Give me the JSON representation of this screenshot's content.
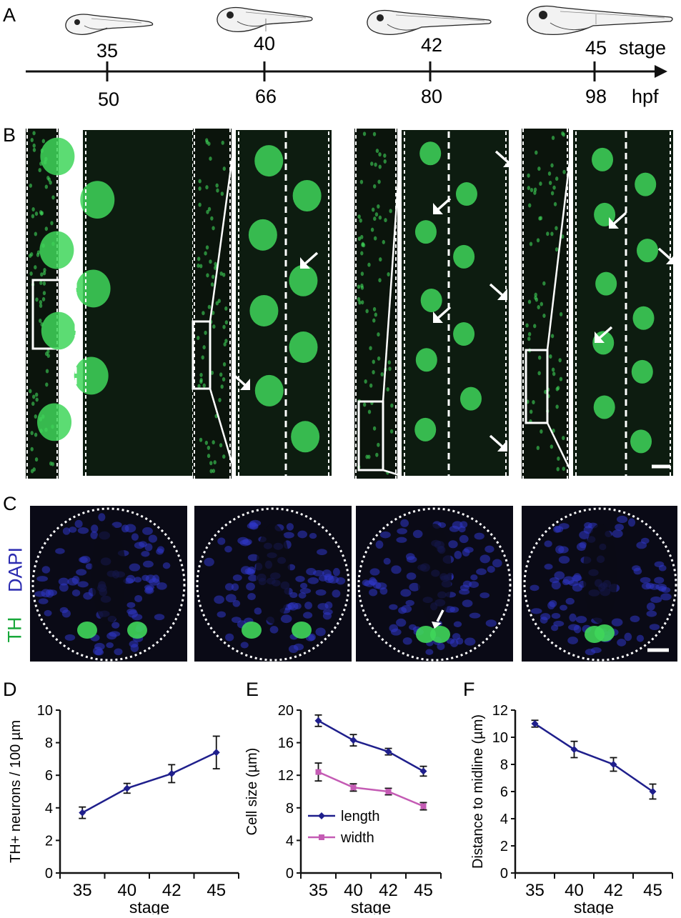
{
  "panels": {
    "A": "A",
    "B": "B",
    "C": "C",
    "D": "D",
    "E": "E",
    "F": "F"
  },
  "timeline": {
    "stage_word": "stage",
    "hpf_word": "hpf",
    "stages": [
      "35",
      "40",
      "42",
      "45"
    ],
    "hpf": [
      "50",
      "66",
      "80",
      "98"
    ]
  },
  "staining": {
    "dapi": "DAPI",
    "th": "TH",
    "dapi_color": "#2b2bb0",
    "th_color": "#18a83a"
  },
  "colors": {
    "length": "#1f1f8c",
    "width": "#c45bb4",
    "gfp": "#3fd65a"
  },
  "chart_data": [
    {
      "type": "line",
      "panel": "D",
      "categories": [
        "35",
        "40",
        "42",
        "45"
      ],
      "series": [
        {
          "values": [
            3.7,
            5.2,
            6.1,
            7.4
          ],
          "error": [
            0.35,
            0.3,
            0.55,
            1.0
          ]
        }
      ],
      "xlabel": "stage",
      "ylabel": "TH+ neurons / 100 µm",
      "ylim": [
        0,
        10
      ],
      "yticks": [
        "0",
        "2",
        "4",
        "6",
        "8",
        "10"
      ]
    },
    {
      "type": "line",
      "panel": "E",
      "categories": [
        "35",
        "40",
        "42",
        "45"
      ],
      "series": [
        {
          "name": "length",
          "values": [
            18.7,
            16.3,
            14.9,
            12.5
          ],
          "error": [
            0.7,
            0.7,
            0.4,
            0.6
          ]
        },
        {
          "name": "width",
          "values": [
            12.4,
            10.5,
            10.0,
            8.2
          ],
          "error": [
            1.1,
            0.45,
            0.4,
            0.45
          ]
        }
      ],
      "xlabel": "stage",
      "ylabel": "Cell size (µm)",
      "ylim": [
        0,
        20
      ],
      "yticks": [
        "0",
        "4",
        "8",
        "12",
        "16",
        "20"
      ],
      "legend": "bottom-left"
    },
    {
      "type": "line",
      "panel": "F",
      "categories": [
        "35",
        "40",
        "42",
        "45"
      ],
      "series": [
        {
          "values": [
            11.0,
            9.1,
            8.0,
            6.0
          ],
          "error": [
            0.25,
            0.6,
            0.5,
            0.55
          ]
        }
      ],
      "xlabel": "stage",
      "ylabel": "Distance to midline (µm)",
      "ylim": [
        0,
        12
      ],
      "yticks": [
        "0",
        "2",
        "4",
        "6",
        "8",
        "10",
        "12"
      ]
    }
  ]
}
